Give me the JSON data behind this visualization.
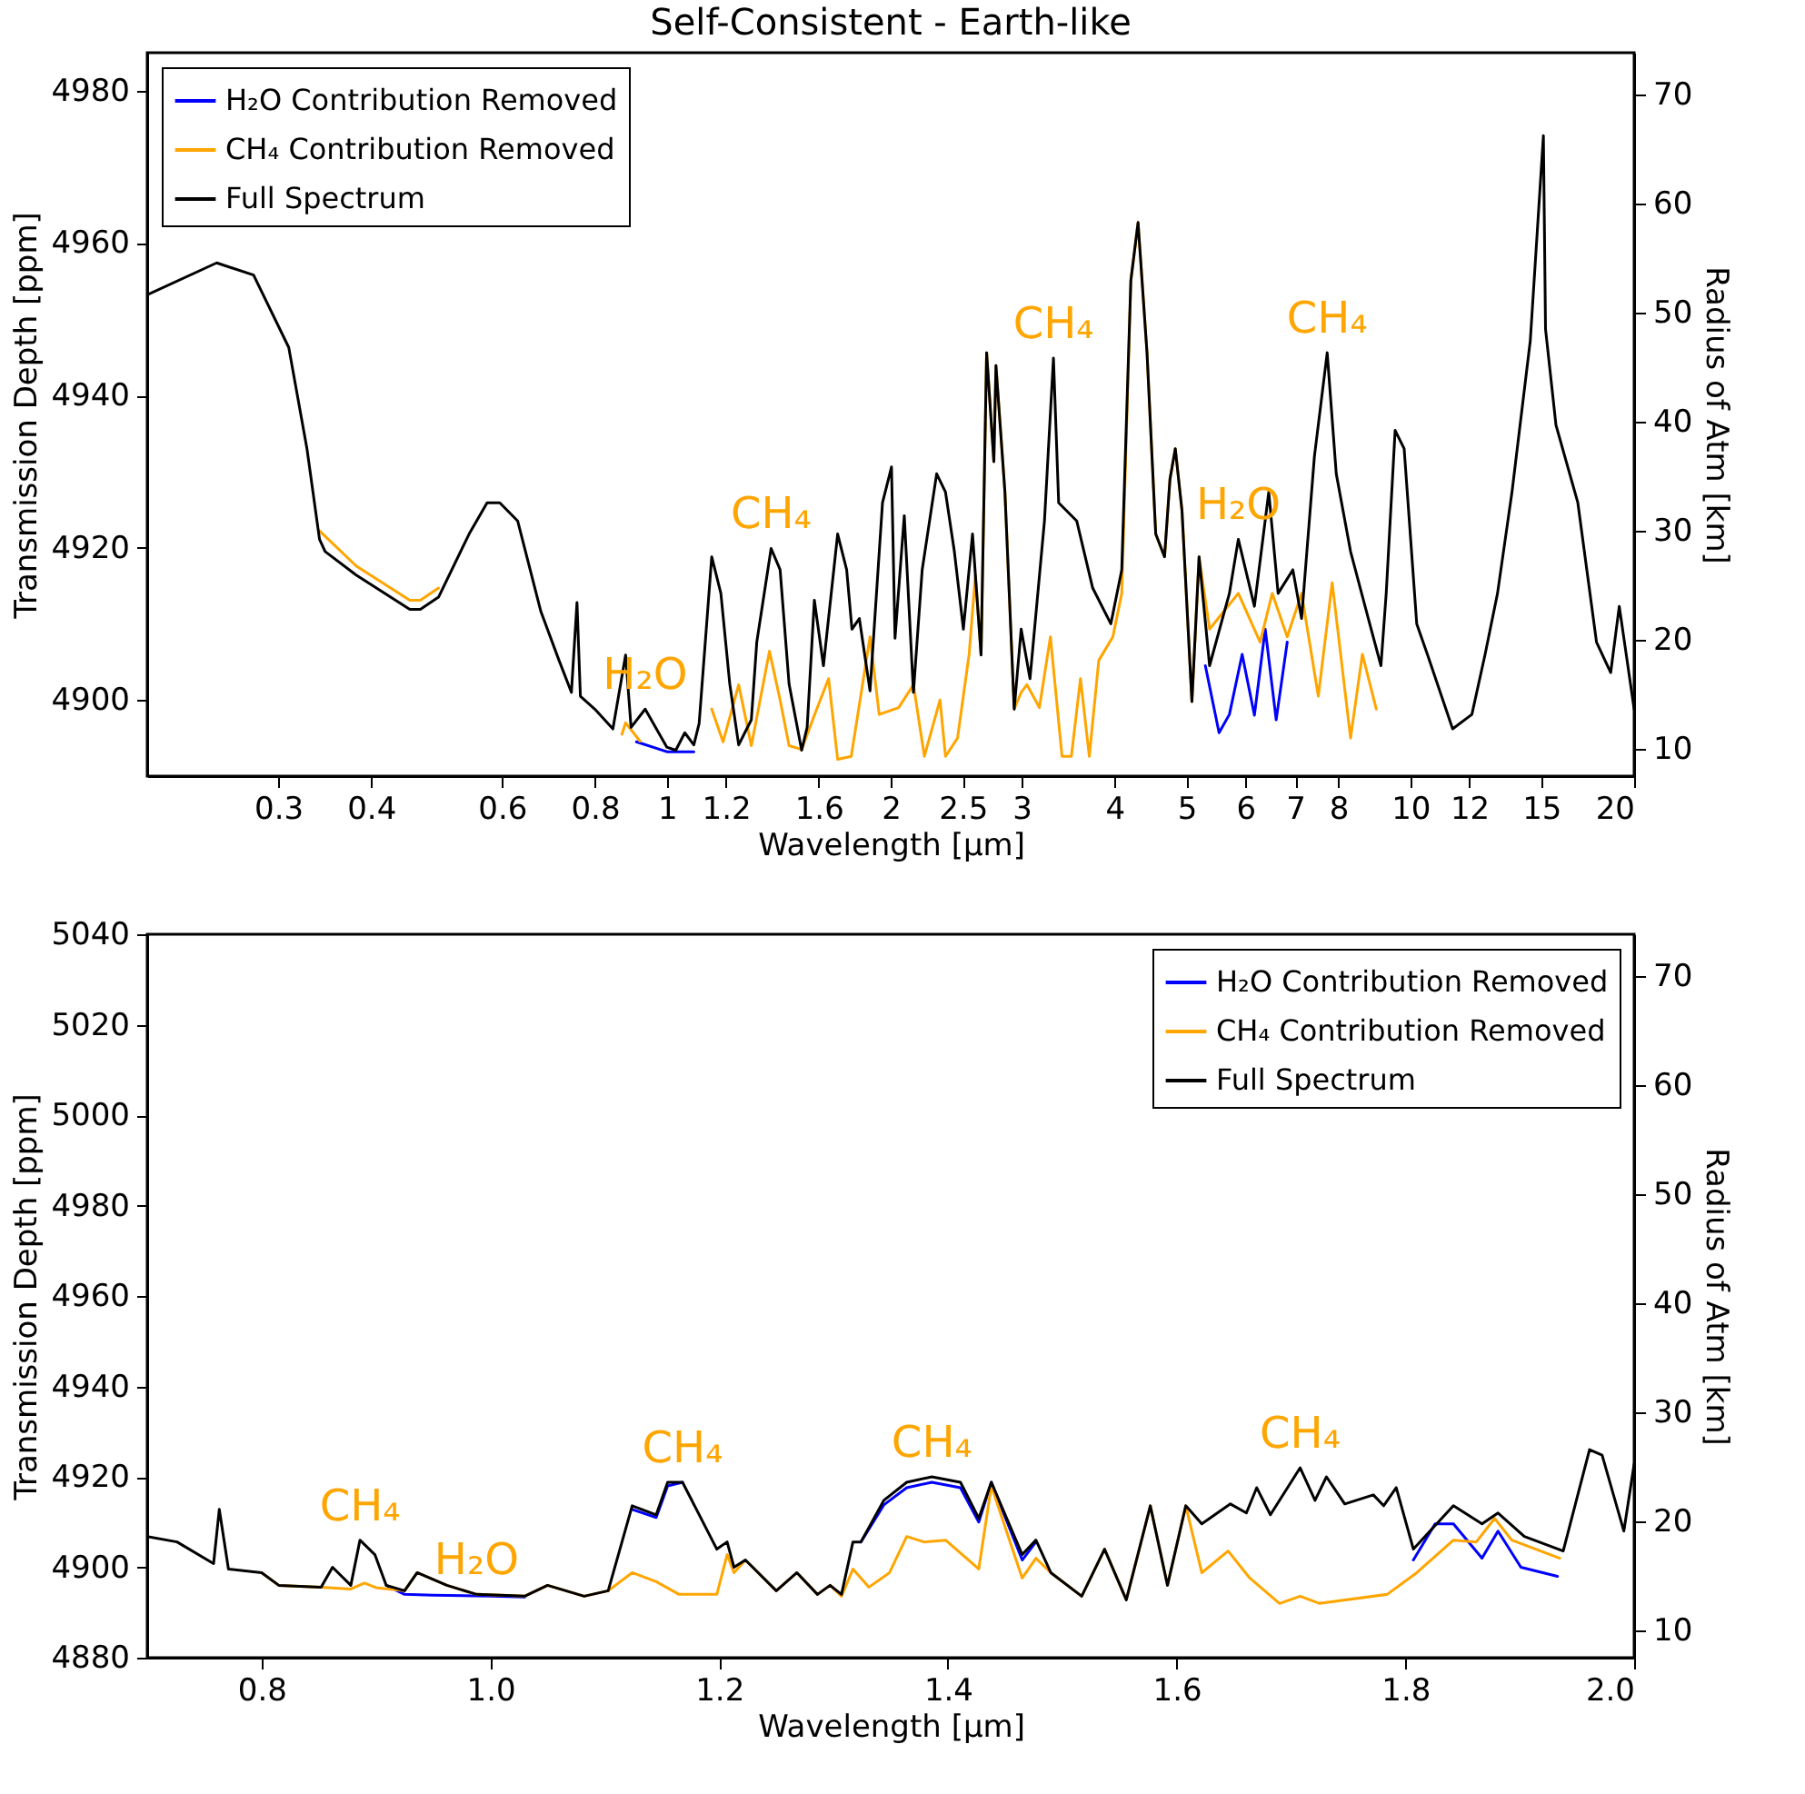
{
  "chart_data": [
    {
      "type": "line",
      "title": "Self-Consistent - Earth-like",
      "xlabel": "Wavelength [μm]",
      "ylabel": "Transmission Depth [ppm]",
      "y2label": "Radius of Atm [km]",
      "log": "x",
      "legend": "top left",
      "xlim": [
        0.2,
        20
      ],
      "xticks": [
        0.3,
        0.4,
        0.6,
        0.8,
        1,
        1.2,
        1.6,
        2,
        2.5,
        3,
        4,
        5,
        6,
        7,
        8,
        10,
        12,
        15,
        20
      ],
      "ylim": [
        4890,
        4985
      ],
      "yticks": [
        4900,
        4920,
        4940,
        4960,
        4980
      ],
      "y2lim": [
        7.5,
        73.8
      ],
      "y2ticks": [
        10,
        20,
        30,
        40,
        50,
        60,
        70
      ],
      "series": [
        {
          "name": "H₂O Contribution Removed",
          "color": "#0000ff",
          "x": [
            0.91,
            1.0,
            1.087,
            3,
            5.3,
            5.53,
            5.71,
            5.94,
            6.17,
            6.38,
            6.6,
            6.83
          ],
          "values": [
            4894.5,
            4893.2,
            4893.2,
            null,
            4904.5,
            4895.7,
            4898.1,
            4906,
            4898,
            4909.3,
            4897.4,
            4907.6
          ]
        },
        {
          "name": "CH₄ Contribution Removed",
          "color": "#ffa500",
          "x": [
            0.341,
            0.382,
            0.451,
            0.466,
            0.493,
            0.6,
            0.87,
            0.88,
            0.92,
            1.0,
            1.149,
            1.19,
            1.249,
            1.299,
            1.374,
            1.42,
            1.46,
            1.518,
            1.579,
            1.65,
            1.697,
            1.77,
            1.876,
            1.93,
            2.05,
            2.146,
            2.22,
            2.33,
            2.37,
            2.46,
            2.55,
            2.6,
            2.646,
            2.692,
            2.753,
            2.771,
            2.849,
            2.932,
            2.996,
            3.05,
            3.17,
            3.28,
            3.4,
            3.5,
            3.6,
            3.7,
            3.81,
            3.98,
            4.091,
            4.208,
            4.303,
            4.424,
            4.545,
            4.671,
            4.75,
            4.829,
            4.93,
            5.084,
            5.198,
            5.37,
            5.87,
            6.28,
            6.52,
            6.83,
            7.14,
            7.52,
            7.85,
            8.31,
            8.62,
            9.0
          ],
          "values": [
            4922.2,
            4917.6,
            4913.1,
            4913.1,
            4914.7,
            null,
            4895.5,
            4897,
            4894.6,
            null,
            4898.8,
            4894.5,
            4902,
            4894,
            4906.4,
            4900,
            4894,
            4893.5,
            4898,
            4902.8,
            4892.2,
            4892.6,
            4908.3,
            4898.1,
            4899,
            4902,
            4892.6,
            4900,
            4892.6,
            4895,
            4906,
            4916.4,
            4906,
            4945.6,
            4931.3,
            4943.9,
            4927.3,
            4898.8,
            4901,
            4902,
            4899,
            4908.3,
            4892.6,
            4892.6,
            4902.8,
            4892.6,
            4905.2,
            4908.3,
            4914,
            4955.1,
            4962.7,
            4945.6,
            4921.8,
            4918.8,
            4929,
            4933,
            4924.9,
            4899.8,
            4918.8,
            4909.3,
            4914,
            4907.6,
            4914,
            4908.3,
            4914,
            4900.5,
            4915.4,
            4895,
            4906,
            4898.8
          ]
        },
        {
          "name": "Full Spectrum",
          "color": "#000000",
          "x": [
            0.2,
            0.248,
            0.278,
            0.31,
            0.328,
            0.341,
            0.347,
            0.382,
            0.451,
            0.466,
            0.493,
            0.542,
            0.573,
            0.596,
            0.63,
            0.677,
            0.716,
            0.744,
            0.757,
            0.765,
            0.8,
            0.846,
            0.88,
            0.895,
            0.935,
            1.0,
            1.028,
            1.057,
            1.087,
            1.105,
            1.149,
            1.182,
            1.215,
            1.249,
            1.299,
            1.321,
            1.381,
            1.42,
            1.46,
            1.518,
            1.544,
            1.579,
            1.624,
            1.697,
            1.745,
            1.774,
            1.815,
            1.876,
            1.95,
            2.005,
            2.027,
            2.086,
            2.146,
            2.205,
            2.306,
            2.37,
            2.436,
            2.505,
            2.577,
            2.646,
            2.692,
            2.753,
            2.771,
            2.849,
            2.932,
            2.996,
            3.079,
            3.22,
            3.311,
            3.365,
            3.559,
            3.739,
            3.955,
            4.091,
            4.208,
            4.303,
            4.424,
            4.545,
            4.671,
            4.75,
            4.829,
            4.93,
            5.084,
            5.198,
            5.37,
            5.71,
            5.87,
            6.17,
            6.45,
            6.64,
            6.95,
            7.14,
            7.43,
            7.73,
            7.95,
            8.31,
            8.78,
            9.13,
            9.28,
            9.54,
            9.81,
            10.2,
            10.55,
            11.4,
            12.1,
            12.6,
            13.1,
            13.7,
            14.5,
            15.1,
            15.2,
            15.7,
            16.8,
            17.8,
            18.6,
            19.1,
            20
          ],
          "values": [
            4953.2,
            4957.4,
            4955.8,
            4946.3,
            4933,
            4921.1,
            4919.5,
            4916.4,
            4911.9,
            4911.9,
            4913.5,
            4921.8,
            4925.9,
            4925.9,
            4923.5,
            4911.6,
            4905.2,
            4901,
            4912.8,
            4900.5,
            4898.8,
            4896.2,
            4905.9,
            4896.4,
            4898.8,
            4893.8,
            4893.4,
            4895.7,
            4894.1,
            4896.9,
            4918.8,
            4914,
            4902.1,
            4894.1,
            4897.4,
            4907.6,
            4919.9,
            4917.1,
            4902.1,
            4893.4,
            4896.4,
            4913.1,
            4904.5,
            4921.8,
            4917.1,
            4909.3,
            4910.7,
            4901.2,
            4925.9,
            4930.6,
            4908.1,
            4924.2,
            4901,
            4917.1,
            4929.7,
            4927.3,
            4919.5,
            4909.3,
            4921.8,
            4905.9,
            4945.6,
            4931.3,
            4943.9,
            4927.3,
            4898.8,
            4909.3,
            4902.8,
            4923.5,
            4944.9,
            4925.9,
            4923.5,
            4914.7,
            4910,
            4917.1,
            4955.1,
            4962.7,
            4945.6,
            4921.8,
            4918.8,
            4929,
            4933,
            4924.9,
            4899.8,
            4918.8,
            4904.5,
            4914,
            4921.1,
            4912.3,
            4927.3,
            4914,
            4917.1,
            4910.7,
            4932,
            4945.6,
            4929.7,
            4919.5,
            4910.7,
            4904.5,
            4914,
            4935.4,
            4933,
            4910,
            4905.9,
            4896.2,
            4898.1,
            4905.9,
            4914,
            4927.3,
            4947.2,
            4974.1,
            4948.7,
            4936.1,
            4925.9,
            4907.6,
            4903.6,
            4912.3,
            4898.8
          ]
        }
      ],
      "annotations": [
        {
          "text": "H₂O",
          "x": 0.935,
          "y": 4898.8
        },
        {
          "text": "CH₄",
          "x": 1.381,
          "y": 4919.9
        },
        {
          "text": "CH₄",
          "x": 3.311,
          "y": 4944.9
        },
        {
          "text": "H₂O",
          "x": 5.87,
          "y": 4921.1
        },
        {
          "text": "CH₄",
          "x": 7.73,
          "y": 4945.6
        }
      ]
    },
    {
      "type": "line",
      "xlabel": "Wavelength [μm]",
      "ylabel": "Transmission Depth [ppm]",
      "y2label": "Radius of Atm [km]",
      "legend": "top right",
      "xlim": [
        0.7,
        2.0
      ],
      "xticks": [
        0.8,
        {
          "value": 1.0,
          "label": "1.0"
        },
        1.2,
        1.4,
        1.6,
        1.8,
        {
          "value": 2.0,
          "label": "2.0"
        }
      ],
      "ylim": [
        4880,
        5040
      ],
      "yticks": [
        4880,
        4900,
        4920,
        4940,
        4960,
        4980,
        5000,
        5020,
        5040
      ],
      "y2lim": [
        7.5,
        73.8
      ],
      "y2ticks": [
        10,
        20,
        30,
        40,
        50,
        60,
        70
      ],
      "series": [
        {
          "name": "H₂O Contribution Removed",
          "color": "#0000ff",
          "x": [
            0.909,
            0.925,
            0.95,
            1.0,
            1.03,
            1.08,
            1.124,
            1.145,
            1.155,
            1.168,
            1.25,
            1.324,
            1.344,
            1.364,
            1.386,
            1.411,
            1.427,
            1.438,
            1.465,
            1.477,
            1.49,
            1.6,
            1.807,
            1.826,
            1.842,
            1.867,
            1.881,
            1.901,
            1.933
          ],
          "values": [
            4896,
            4894,
            4893.8,
            4893.6,
            4893.4,
            null,
            4912.8,
            4911,
            4918,
            4918.8,
            null,
            4905.6,
            4913.8,
            4917.6,
            4918.8,
            4917.6,
            4910,
            4918.8,
            4901.6,
            4905.6,
            null,
            null,
            4901.6,
            4909.6,
            4909.6,
            4902,
            4908,
            4900,
            4898
          ]
        },
        {
          "name": "CH₄ Contribution Removed",
          "color": "#ffa500",
          "x": [
            0.8,
            0.815,
            0.852,
            0.878,
            0.89,
            0.9,
            0.925,
            0.936,
            0.962,
            0.988,
            1.03,
            1.05,
            1.082,
            1.103,
            1.124,
            1.145,
            1.165,
            1.198,
            1.207,
            1.213,
            1.223,
            1.25,
            1.268,
            1.286,
            1.297,
            1.307,
            1.317,
            1.331,
            1.349,
            1.364,
            1.379,
            1.398,
            1.427,
            1.438,
            1.465,
            1.477,
            1.49,
            1.517,
            1.537,
            1.556,
            1.577,
            1.592,
            1.608,
            1.622,
            1.645,
            1.664,
            1.69,
            1.708,
            1.725,
            1.784,
            1.81,
            1.842,
            1.862,
            1.878,
            1.893,
            1.935
          ],
          "values": [
            4898.8,
            4896,
            4895.6,
            4895.2,
            4896.5,
            4895.5,
            4894.8,
            4898.8,
            4896,
            4894,
            4893.6,
            4896,
            4893.6,
            4894.8,
            4898.8,
            4896.8,
            4894,
            4894,
            4902.8,
            4898.8,
            4901.6,
            4894.8,
            4898.8,
            4894,
            4896,
            4893.6,
            4899.6,
            4895.6,
            4898.8,
            4906.8,
            4905.6,
            4906,
            4899.6,
            4918,
            4897.6,
            4902,
            4898.8,
            4893.6,
            4904,
            4892.8,
            4913.6,
            4896,
            4913.6,
            4898.8,
            4903.6,
            4897.6,
            4892,
            4893.6,
            4892,
            4894,
            4898.8,
            4906,
            4905.6,
            4910.8,
            4906,
            4902
          ]
        },
        {
          "name": "Full Spectrum",
          "color": "#000000",
          "x": [
            0.7,
            0.726,
            0.758,
            0.763,
            0.771,
            0.8,
            0.815,
            0.852,
            0.862,
            0.878,
            0.886,
            0.899,
            0.909,
            0.925,
            0.936,
            0.962,
            0.988,
            1.03,
            1.05,
            1.082,
            1.103,
            1.124,
            1.145,
            1.155,
            1.168,
            1.198,
            1.207,
            1.213,
            1.223,
            1.25,
            1.268,
            1.286,
            1.297,
            1.307,
            1.317,
            1.324,
            1.344,
            1.364,
            1.386,
            1.411,
            1.427,
            1.438,
            1.465,
            1.477,
            1.49,
            1.517,
            1.537,
            1.556,
            1.577,
            1.592,
            1.608,
            1.622,
            1.647,
            1.661,
            1.67,
            1.682,
            1.708,
            1.721,
            1.731,
            1.747,
            1.772,
            1.781,
            1.792,
            1.807,
            1.842,
            1.867,
            1.881,
            1.904,
            1.938,
            1.961,
            1.972,
            1.991,
            2.0
          ],
          "values": [
            4906.8,
            4905.6,
            4900.8,
            4912.8,
            4899.6,
            4898.8,
            4896,
            4895.6,
            4900,
            4896,
            4906,
            4902.8,
            4896,
            4894.8,
            4898.8,
            4896,
            4894,
            4893.6,
            4896,
            4893.6,
            4894.8,
            4913.6,
            4911.6,
            4918.8,
            4918.8,
            4904,
            4905.6,
            4900,
            4901.6,
            4894.8,
            4898.8,
            4894,
            4896,
            4894,
            4905.6,
            4905.6,
            4914.8,
            4918.8,
            4920,
            4918.8,
            4910.8,
            4918.8,
            4902.8,
            4906,
            4898.8,
            4893.6,
            4904,
            4892.8,
            4913.6,
            4896,
            4913.6,
            4909.6,
            4914,
            4912,
            4917.6,
            4911.6,
            4922,
            4914.8,
            4920,
            4914,
            4916,
            4913.6,
            4917.6,
            4904,
            4913.6,
            4909.6,
            4912,
            4906.8,
            4903.6,
            4926,
            4924.8,
            4908,
            4922.8
          ]
        }
      ],
      "annotations": [
        {
          "text": "CH₄",
          "x": 0.886,
          "y": 4906
        },
        {
          "text": "H₂O",
          "x": 0.988,
          "y": 4894
        },
        {
          "text": "CH₄",
          "x": 1.168,
          "y": 4918.8
        },
        {
          "text": "CH₄",
          "x": 1.386,
          "y": 4920
        },
        {
          "text": "CH₄",
          "x": 1.708,
          "y": 4922
        }
      ]
    }
  ]
}
